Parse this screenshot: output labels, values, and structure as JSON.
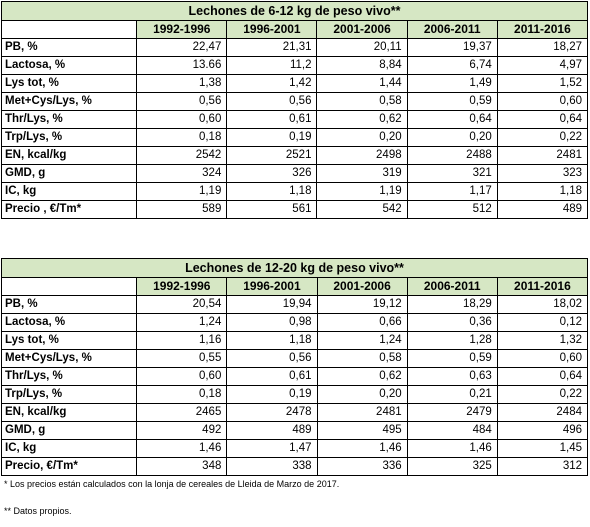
{
  "tables": [
    {
      "title": "Lechones de 6-12 kg de peso vivo**",
      "periods": [
        "1992-1996",
        "1996-2001",
        "2001-2006",
        "2006-2011",
        "2011-2016"
      ],
      "rows": [
        {
          "label": "PB, %",
          "values": [
            "22,47",
            "21,31",
            "20,11",
            "19,37",
            "18,27"
          ]
        },
        {
          "label": "Lactosa, %",
          "values": [
            "13.66",
            "11,2",
            "8,84",
            "6,74",
            "4,97"
          ]
        },
        {
          "label": "Lys tot, %",
          "values": [
            "1,38",
            "1,42",
            "1,44",
            "1,49",
            "1,52"
          ]
        },
        {
          "label": "Met+Cys/Lys, %",
          "values": [
            "0,56",
            "0,56",
            "0,58",
            "0,59",
            "0,60"
          ]
        },
        {
          "label": "Thr/Lys, %",
          "values": [
            "0,60",
            "0,61",
            "0,62",
            "0,64",
            "0,64"
          ]
        },
        {
          "label": "Trp/Lys, %",
          "values": [
            "0,18",
            "0,19",
            "0,20",
            "0,20",
            "0,22"
          ]
        },
        {
          "label": "EN, kcal/kg",
          "values": [
            "2542",
            "2521",
            "2498",
            "2488",
            "2481"
          ]
        },
        {
          "label": "GMD, g",
          "values": [
            "324",
            "326",
            "319",
            "321",
            "323"
          ]
        },
        {
          "label": "IC, kg",
          "values": [
            "1,19",
            "1,18",
            "1,19",
            "1,17",
            "1,18"
          ]
        },
        {
          "label": "Precio , €/Tm*",
          "values": [
            "589",
            "561",
            "542",
            "512",
            "489"
          ]
        }
      ]
    },
    {
      "title": "Lechones de 12-20 kg de peso vivo**",
      "periods": [
        "1992-1996",
        "1996-2001",
        "2001-2006",
        "2006-2011",
        "2011-2016"
      ],
      "rows": [
        {
          "label": "PB, %",
          "values": [
            "20,54",
            "19,94",
            "19,12",
            "18,29",
            "18,02"
          ]
        },
        {
          "label": "Lactosa, %",
          "values": [
            "1,24",
            "0,98",
            "0,66",
            "0,36",
            "0,12"
          ]
        },
        {
          "label": "Lys tot, %",
          "values": [
            "1,16",
            "1,18",
            "1,24",
            "1,28",
            "1,32"
          ]
        },
        {
          "label": "Met+Cys/Lys, %",
          "values": [
            "0,55",
            "0,56",
            "0,58",
            "0,59",
            "0,60"
          ]
        },
        {
          "label": "Thr/Lys, %",
          "values": [
            "0,60",
            "0,61",
            "0,62",
            "0,63",
            "0,64"
          ]
        },
        {
          "label": "Trp/Lys, %",
          "values": [
            "0,18",
            "0,19",
            "0,20",
            "0,21",
            "0,22"
          ]
        },
        {
          "label": "EN, kcal/kg",
          "values": [
            "2465",
            "2478",
            "2481",
            "2479",
            "2484"
          ]
        },
        {
          "label": "GMD, g",
          "values": [
            "492",
            "489",
            "495",
            "484",
            "496"
          ]
        },
        {
          "label": "IC, kg",
          "values": [
            "1,46",
            "1,47",
            "1,46",
            "1,46",
            "1,45"
          ]
        },
        {
          "label": "Precio, €/Tm*",
          "values": [
            "348",
            "338",
            "336",
            "325",
            "312"
          ]
        }
      ]
    }
  ],
  "notes": {
    "prices": "* Los precios están calculados con la lonja de cereales de Lleida de Marzo de 2017.",
    "own_data": "** Datos propios."
  },
  "colors": {
    "header_fill": "#d6e7c4",
    "border": "#000000"
  }
}
